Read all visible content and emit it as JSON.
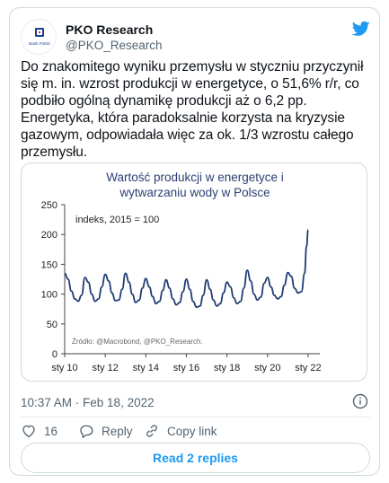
{
  "account": {
    "display_name": "PKO Research",
    "handle": "@PKO_Research",
    "avatar_icon": "pko-bank-polski-logo",
    "avatar_caption": "Bank Polski"
  },
  "tweet": {
    "text": "Do znakomitego wyniku przemysłu w styczniu przyczynił się m. in. wzrost produkcji w energetyce, o 51,6% r/r, co podbiło ogólną dynamikę produkcji aż o 6,2 pp. Energetyka, która paradoksalnie korzysta na kryzysie gazowym, odpowiadała więc za ok. 1/3 wzrostu całego przemysłu.",
    "timestamp": "10:37 AM · Feb 18, 2022"
  },
  "actions": {
    "like_count": "16",
    "reply_label": "Reply",
    "copy_label": "Copy link",
    "read_replies_label": "Read 2 replies"
  },
  "colors": {
    "accent": "#1d9bf0",
    "line": "#1f3b73",
    "title": "#2b3f73",
    "text_secondary": "#536471"
  },
  "chart_data": {
    "type": "line",
    "title_line1": "Wartość produkcji w energetyce i",
    "title_line2": "wytwarzaniu wody w Polsce",
    "annotation": "indeks, 2015 = 100",
    "source": "Źródło: @Macrobond, @PKO_Research.",
    "ylim": [
      0,
      250
    ],
    "yticks": [
      "0",
      "50",
      "100",
      "150",
      "200",
      "250"
    ],
    "xlim": [
      2010.0,
      2022.4
    ],
    "xticks": [
      {
        "label": "sty 10",
        "value": 2010
      },
      {
        "label": "sty 12",
        "value": 2012
      },
      {
        "label": "sty 14",
        "value": 2014
      },
      {
        "label": "sty 16",
        "value": 2016
      },
      {
        "label": "sty 18",
        "value": 2018
      },
      {
        "label": "sty 20",
        "value": 2020
      },
      {
        "label": "sty 22",
        "value": 2022
      }
    ],
    "grid": false,
    "series": [
      {
        "values": [
          [
            2010.0,
            135
          ],
          [
            2010.17,
            125
          ],
          [
            2010.33,
            105
          ],
          [
            2010.5,
            92
          ],
          [
            2010.67,
            88
          ],
          [
            2010.83,
            98
          ],
          [
            2011.0,
            128
          ],
          [
            2011.17,
            120
          ],
          [
            2011.33,
            100
          ],
          [
            2011.5,
            88
          ],
          [
            2011.67,
            92
          ],
          [
            2011.83,
            112
          ],
          [
            2012.0,
            133
          ],
          [
            2012.17,
            122
          ],
          [
            2012.33,
            102
          ],
          [
            2012.5,
            89
          ],
          [
            2012.67,
            90
          ],
          [
            2012.83,
            108
          ],
          [
            2013.0,
            135
          ],
          [
            2013.17,
            120
          ],
          [
            2013.33,
            100
          ],
          [
            2013.5,
            86
          ],
          [
            2013.67,
            90
          ],
          [
            2013.83,
            110
          ],
          [
            2014.0,
            126
          ],
          [
            2014.17,
            112
          ],
          [
            2014.33,
            96
          ],
          [
            2014.5,
            84
          ],
          [
            2014.67,
            88
          ],
          [
            2014.83,
            106
          ],
          [
            2015.0,
            124
          ],
          [
            2015.17,
            110
          ],
          [
            2015.33,
            92
          ],
          [
            2015.5,
            82
          ],
          [
            2015.67,
            86
          ],
          [
            2015.83,
            104
          ],
          [
            2016.0,
            125
          ],
          [
            2016.17,
            108
          ],
          [
            2016.33,
            88
          ],
          [
            2016.5,
            78
          ],
          [
            2016.67,
            80
          ],
          [
            2016.83,
            98
          ],
          [
            2017.0,
            124
          ],
          [
            2017.17,
            108
          ],
          [
            2017.33,
            90
          ],
          [
            2017.5,
            80
          ],
          [
            2017.67,
            84
          ],
          [
            2017.83,
            102
          ],
          [
            2018.0,
            120
          ],
          [
            2018.17,
            112
          ],
          [
            2018.33,
            94
          ],
          [
            2018.5,
            84
          ],
          [
            2018.67,
            88
          ],
          [
            2018.83,
            110
          ],
          [
            2019.0,
            140
          ],
          [
            2019.17,
            122
          ],
          [
            2019.33,
            100
          ],
          [
            2019.5,
            90
          ],
          [
            2019.67,
            95
          ],
          [
            2019.83,
            118
          ],
          [
            2020.0,
            128
          ],
          [
            2020.17,
            112
          ],
          [
            2020.33,
            98
          ],
          [
            2020.5,
            92
          ],
          [
            2020.67,
            96
          ],
          [
            2020.83,
            115
          ],
          [
            2021.0,
            136
          ],
          [
            2021.17,
            130
          ],
          [
            2021.33,
            110
          ],
          [
            2021.5,
            102
          ],
          [
            2021.67,
            104
          ],
          [
            2021.83,
            135
          ],
          [
            2021.92,
            180
          ],
          [
            2022.0,
            208
          ]
        ]
      }
    ]
  }
}
